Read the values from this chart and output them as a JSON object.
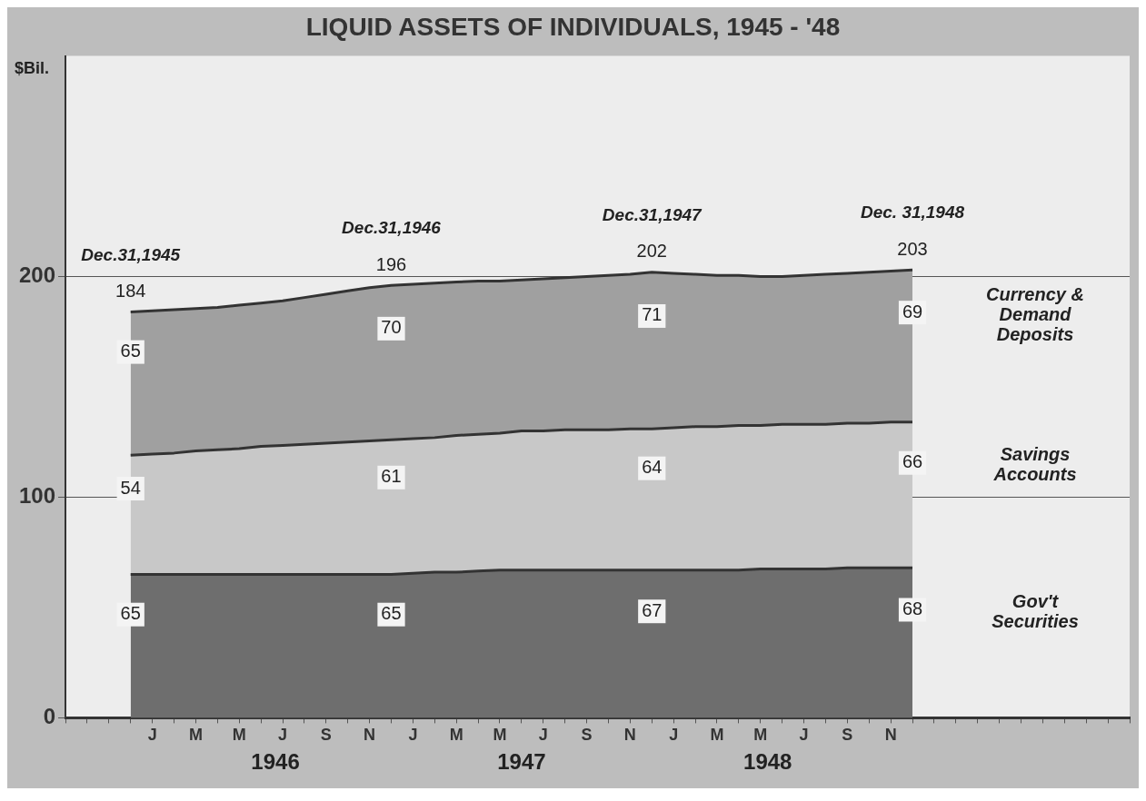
{
  "chart_data": {
    "type": "area",
    "title": "LIQUID ASSETS OF INDIVIDUALS, 1945 - '48",
    "ylabel": "$Bil.",
    "stacked": true,
    "grid": "y",
    "legend": false,
    "categories": [
      null,
      null,
      null,
      null,
      "J",
      null,
      "M",
      null,
      "M",
      null,
      "J",
      null,
      "S",
      null,
      "N",
      null,
      "J",
      null,
      "M",
      null,
      "M",
      null,
      "J",
      null,
      "S",
      null,
      "N",
      null,
      "J",
      null,
      "M",
      null,
      "M",
      null,
      "J",
      null,
      "S",
      null,
      "N",
      null,
      null,
      null,
      null,
      null,
      null,
      null,
      null,
      null,
      null,
      null
    ],
    "series": [
      {
        "name": "Gov't Securities",
        "color": "#6e6e6e",
        "values": [
          null,
          null,
          null,
          65,
          65,
          65,
          65,
          65,
          65,
          65,
          65,
          65,
          65,
          65,
          65,
          65,
          65.5,
          66,
          66,
          66.5,
          67,
          67,
          67,
          67,
          67,
          67,
          67,
          67,
          67,
          67,
          67,
          67,
          67.5,
          67.5,
          67.5,
          67.5,
          68,
          68,
          68,
          68,
          null,
          null,
          null,
          null,
          null,
          null,
          null,
          null,
          null,
          null
        ],
        "value_labels": [
          null,
          null,
          null,
          "65",
          null,
          null,
          null,
          null,
          null,
          null,
          null,
          null,
          null,
          null,
          null,
          "65",
          null,
          null,
          null,
          null,
          null,
          null,
          null,
          null,
          null,
          null,
          null,
          "67",
          null,
          null,
          null,
          null,
          null,
          null,
          null,
          null,
          null,
          null,
          null,
          "68",
          null,
          null,
          null,
          null,
          null,
          null,
          null,
          null,
          null,
          null
        ]
      },
      {
        "name": "Savings Accounts",
        "color": "#c8c8c8",
        "values": [
          null,
          null,
          null,
          54,
          54.5,
          55,
          56,
          56.5,
          57,
          58,
          58.5,
          59,
          59.5,
          60,
          60.5,
          61,
          61,
          61,
          62,
          62,
          62,
          63,
          63,
          63.5,
          63.5,
          63.5,
          64,
          64,
          64.5,
          65,
          65,
          65.5,
          65,
          65.5,
          65.5,
          65.5,
          65.5,
          65.5,
          66,
          66,
          null,
          null,
          null,
          null,
          null,
          null,
          null,
          null,
          null,
          null
        ],
        "value_labels": [
          null,
          null,
          null,
          "54",
          null,
          null,
          null,
          null,
          null,
          null,
          null,
          null,
          null,
          null,
          null,
          "61",
          null,
          null,
          null,
          null,
          null,
          null,
          null,
          null,
          null,
          null,
          null,
          "64",
          null,
          null,
          null,
          null,
          null,
          null,
          null,
          null,
          null,
          null,
          null,
          "66",
          null,
          null,
          null,
          null,
          null,
          null,
          null,
          null,
          null,
          null
        ]
      },
      {
        "name": "Currency & Demand Deposits",
        "color": "#a0a0a0",
        "values": [
          null,
          null,
          null,
          65,
          65,
          65,
          64.5,
          64.5,
          65,
          65,
          65.5,
          66.5,
          67.5,
          68.5,
          69.5,
          70,
          70,
          70,
          69.5,
          69.5,
          69,
          68.5,
          69,
          69,
          69.5,
          70,
          70,
          71,
          70,
          69,
          68.5,
          68,
          67.5,
          67,
          67.5,
          68,
          68,
          68.5,
          68.5,
          69,
          null,
          null,
          null,
          null,
          null,
          null,
          null,
          null,
          null,
          null
        ],
        "value_labels": [
          null,
          null,
          null,
          "65",
          null,
          null,
          null,
          null,
          null,
          null,
          null,
          null,
          null,
          null,
          null,
          "70",
          null,
          null,
          null,
          null,
          null,
          null,
          null,
          null,
          null,
          null,
          null,
          "71",
          null,
          null,
          null,
          null,
          null,
          null,
          null,
          null,
          null,
          null,
          null,
          "69",
          null,
          null,
          null,
          null,
          null,
          null,
          null,
          null,
          null,
          null
        ]
      }
    ],
    "totals": [
      null,
      null,
      null,
      "184",
      null,
      null,
      null,
      null,
      null,
      null,
      null,
      null,
      null,
      null,
      null,
      "196",
      null,
      null,
      null,
      null,
      null,
      null,
      null,
      null,
      null,
      null,
      null,
      "202",
      null,
      null,
      null,
      null,
      null,
      null,
      null,
      null,
      null,
      null,
      null,
      "203",
      null,
      null,
      null,
      null,
      null,
      null,
      null,
      null,
      null,
      null
    ],
    "annotations": [
      {
        "text": "Dec.31,1945",
        "y": 184
      },
      {
        "text": "Dec.31,1946",
        "y": 196
      },
      {
        "text": "Dec.31,1947",
        "y": 202
      },
      {
        "text": "Dec. 31,1948",
        "y": 203
      },
      "1946",
      "1947",
      "1948"
    ],
    "ylim": [
      0,
      300
    ],
    "yticks": [
      0,
      100,
      200
    ]
  }
}
